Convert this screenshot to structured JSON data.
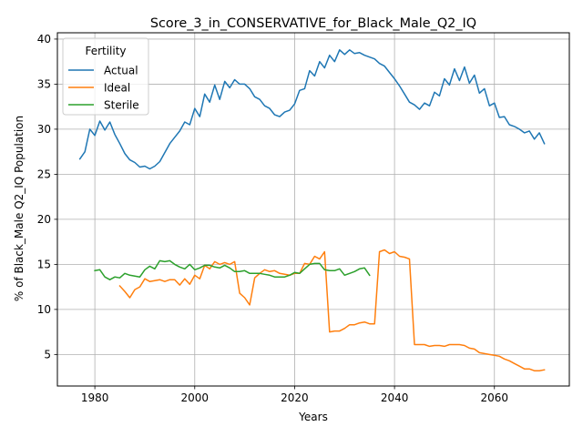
{
  "chart_data": {
    "type": "line",
    "title": "Score_3_in_CONSERVATIVE_for_Black_Male_Q2_IQ",
    "xlabel": "Years",
    "ylabel": "% of Black_Male Q2_IQ Population",
    "xlim": [
      1972.5,
      2075
    ],
    "ylim": [
      1.5,
      40.7
    ],
    "xticks": [
      1980,
      2000,
      2020,
      2040,
      2060
    ],
    "yticks": [
      5,
      10,
      15,
      20,
      25,
      30,
      35,
      40
    ],
    "grid": true,
    "legend": {
      "title": "Fertility",
      "position": "top-left"
    },
    "series": [
      {
        "name": "Actual",
        "color": "#1f77b4",
        "x": [
          1977,
          1978,
          1979,
          1980,
          1981,
          1982,
          1983,
          1984,
          1985,
          1986,
          1987,
          1988,
          1989,
          1990,
          1991,
          1992,
          1993,
          1994,
          1995,
          1996,
          1997,
          1998,
          1999,
          2000,
          2001,
          2002,
          2003,
          2004,
          2005,
          2006,
          2007,
          2008,
          2009,
          2010,
          2011,
          2012,
          2013,
          2014,
          2015,
          2016,
          2017,
          2018,
          2019,
          2020,
          2021,
          2022,
          2023,
          2024,
          2025,
          2026,
          2027,
          2028,
          2029,
          2030,
          2031,
          2032,
          2033,
          2034,
          2035,
          2036,
          2037,
          2038,
          2039,
          2040,
          2041,
          2042,
          2043,
          2044,
          2045,
          2046,
          2047,
          2048,
          2049,
          2050,
          2051,
          2052,
          2053,
          2054,
          2055,
          2056,
          2057,
          2058,
          2059,
          2060,
          2061,
          2062,
          2063,
          2064,
          2065,
          2066,
          2067,
          2068,
          2069,
          2070
        ],
        "y": [
          26.7,
          27.5,
          30.0,
          29.3,
          30.9,
          29.9,
          30.8,
          29.4,
          28.4,
          27.3,
          26.6,
          26.3,
          25.8,
          25.9,
          25.6,
          25.9,
          26.4,
          27.4,
          28.4,
          29.1,
          29.8,
          30.8,
          30.5,
          32.3,
          31.4,
          33.9,
          33.0,
          34.9,
          33.3,
          35.3,
          34.6,
          35.5,
          35.0,
          35.0,
          34.5,
          33.6,
          33.3,
          32.6,
          32.3,
          31.6,
          31.4,
          31.9,
          32.1,
          32.8,
          34.3,
          34.5,
          36.5,
          35.9,
          37.5,
          36.8,
          38.2,
          37.5,
          38.8,
          38.3,
          38.8,
          38.4,
          38.5,
          38.2,
          38.0,
          37.8,
          37.3,
          37.0,
          36.3,
          35.6,
          34.8,
          33.9,
          33.0,
          32.7,
          32.2,
          32.9,
          32.6,
          34.1,
          33.7,
          35.6,
          34.9,
          36.7,
          35.4,
          36.9,
          35.1,
          36.0,
          34.0,
          34.5,
          32.6,
          32.9,
          31.3,
          31.4,
          30.5,
          30.3,
          30.0,
          29.6,
          29.8,
          28.9,
          29.6,
          28.4
        ]
      },
      {
        "name": "Ideal",
        "color": "#ff7f0e",
        "x": [
          1985,
          1986,
          1987,
          1988,
          1989,
          1990,
          1991,
          1992,
          1993,
          1994,
          1995,
          1996,
          1997,
          1998,
          1999,
          2000,
          2001,
          2002,
          2003,
          2004,
          2005,
          2006,
          2007,
          2008,
          2009,
          2010,
          2011,
          2012,
          2013,
          2014,
          2015,
          2016,
          2017,
          2018,
          2019,
          2020,
          2021,
          2022,
          2023,
          2024,
          2025,
          2026,
          2027,
          2028,
          2029,
          2030,
          2031,
          2032,
          2033,
          2034,
          2035,
          2036,
          2037,
          2038,
          2039,
          2040,
          2041,
          2042,
          2043,
          2044,
          2045,
          2046,
          2047,
          2048,
          2049,
          2050,
          2051,
          2052,
          2053,
          2054,
          2055,
          2056,
          2057,
          2058,
          2059,
          2060,
          2061,
          2062,
          2063,
          2064,
          2065,
          2066,
          2067,
          2068,
          2069,
          2070
        ],
        "y": [
          12.6,
          12.0,
          11.3,
          12.2,
          12.5,
          13.4,
          13.1,
          13.2,
          13.3,
          13.1,
          13.3,
          13.3,
          12.7,
          13.4,
          12.8,
          13.8,
          13.4,
          14.9,
          14.5,
          15.3,
          15.0,
          15.2,
          15.0,
          15.3,
          11.8,
          11.3,
          10.5,
          13.5,
          14.0,
          14.4,
          14.2,
          14.3,
          14.0,
          13.9,
          13.8,
          14.0,
          14.0,
          15.1,
          15.0,
          15.9,
          15.6,
          16.4,
          7.5,
          7.6,
          7.6,
          7.9,
          8.3,
          8.3,
          8.5,
          8.6,
          8.4,
          8.4,
          16.4,
          16.6,
          16.2,
          16.4,
          15.9,
          15.8,
          15.6,
          6.1,
          6.1,
          6.1,
          5.9,
          6.0,
          6.0,
          5.9,
          6.1,
          6.1,
          6.1,
          6.0,
          5.7,
          5.6,
          5.2,
          5.1,
          5.0,
          4.9,
          4.8,
          4.5,
          4.3,
          4.0,
          3.7,
          3.4,
          3.4,
          3.2,
          3.2,
          3.3
        ]
      },
      {
        "name": "Sterile",
        "color": "#2ca02c",
        "x": [
          1980,
          1981,
          1982,
          1983,
          1984,
          1985,
          1986,
          1987,
          1988,
          1989,
          1990,
          1991,
          1992,
          1993,
          1994,
          1995,
          1996,
          1997,
          1998,
          1999,
          2000,
          2001,
          2002,
          2003,
          2004,
          2005,
          2006,
          2007,
          2008,
          2009,
          2010,
          2011,
          2012,
          2013,
          2014,
          2015,
          2016,
          2017,
          2018,
          2019,
          2020,
          2021,
          2022,
          2023,
          2024,
          2025,
          2026,
          2027,
          2028,
          2029,
          2030,
          2031,
          2032,
          2033,
          2034,
          2035
        ],
        "y": [
          14.3,
          14.4,
          13.6,
          13.3,
          13.6,
          13.5,
          14.0,
          13.8,
          13.7,
          13.6,
          14.4,
          14.8,
          14.5,
          15.4,
          15.3,
          15.4,
          15.0,
          14.7,
          14.5,
          15.0,
          14.4,
          14.6,
          14.9,
          14.9,
          14.7,
          14.6,
          14.9,
          14.6,
          14.2,
          14.2,
          14.3,
          14.0,
          14.0,
          14.0,
          13.9,
          13.8,
          13.6,
          13.6,
          13.6,
          13.8,
          14.1,
          14.0,
          14.5,
          15.0,
          15.1,
          15.1,
          14.4,
          14.3,
          14.3,
          14.5,
          13.8,
          14.0,
          14.2,
          14.5,
          14.6,
          13.8
        ]
      }
    ]
  }
}
